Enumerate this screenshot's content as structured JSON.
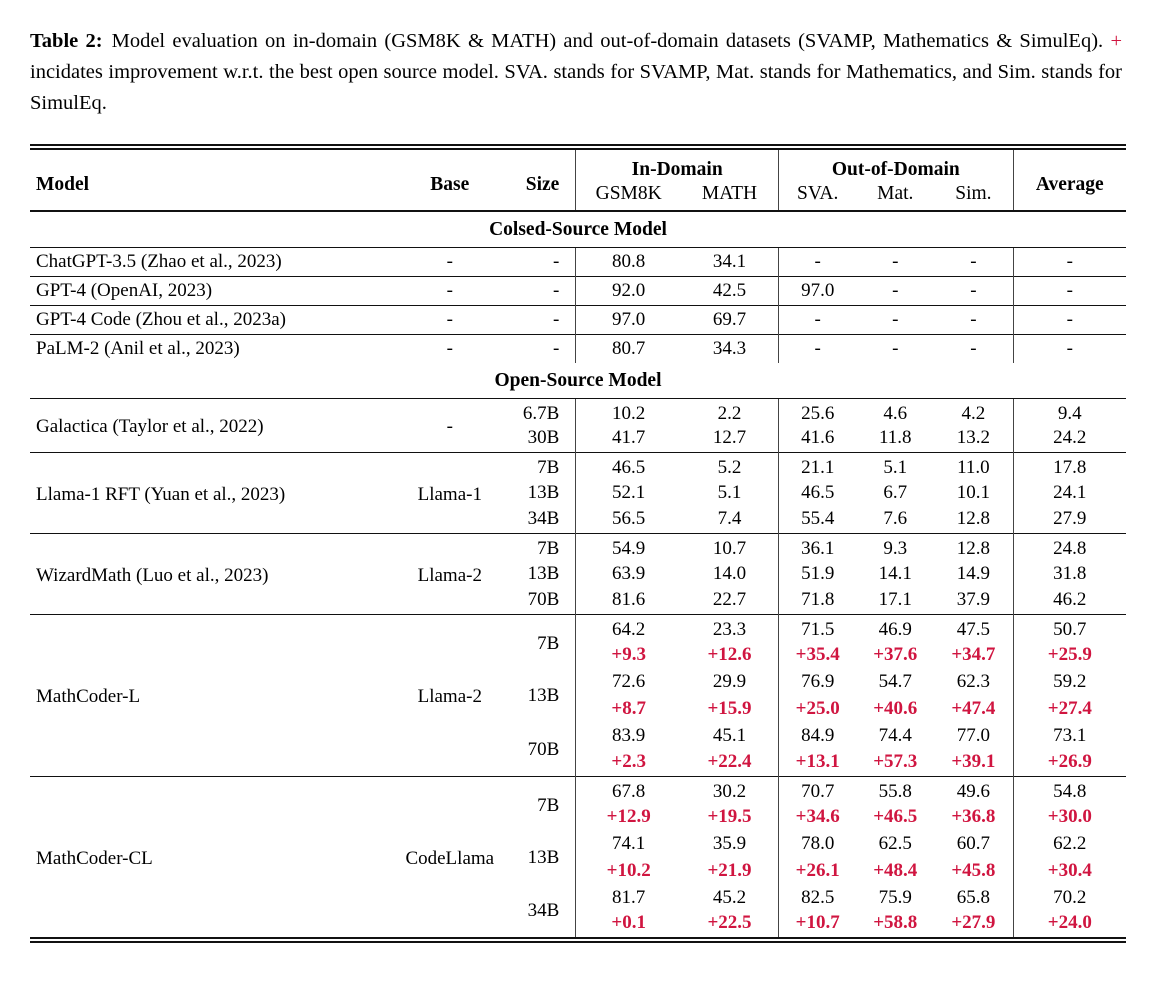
{
  "caption": {
    "label": "Table 2:",
    "before_plus": "Model evaluation on in-domain (GSM8K & MATH) and out-of-domain datasets (SVAMP, Mathematics & SimulEq). ",
    "plus": "+",
    "after_plus": " incidates improvement w.r.t. the best open source model. SVA. stands for SVAMP, Mat. stands for Mathematics, and Sim. stands for SimulEq."
  },
  "colors": {
    "delta_red": "#d01540"
  },
  "table": {
    "headers": {
      "model": "Model",
      "base": "Base",
      "size": "Size",
      "in_domain": "In-Domain",
      "out_of_domain": "Out-of-Domain",
      "average": "Average",
      "gsm8k": "GSM8K",
      "math": "MATH",
      "sva": "SVA.",
      "mat": "Mat.",
      "sim": "Sim."
    },
    "sections": [
      {
        "title": "Colsed-Source Model",
        "groups": [
          {
            "model": "ChatGPT-3.5 (Zhao et al., 2023)",
            "base": "-",
            "rows": [
              {
                "size": "-",
                "values": [
                  "80.8",
                  "34.1",
                  "-",
                  "-",
                  "-",
                  "-"
                ]
              }
            ]
          },
          {
            "model": "GPT-4 (OpenAI, 2023)",
            "base": "-",
            "rows": [
              {
                "size": "-",
                "values": [
                  "92.0",
                  "42.5",
                  "97.0",
                  "-",
                  "-",
                  "-"
                ]
              }
            ]
          },
          {
            "model": "GPT-4 Code (Zhou et al., 2023a)",
            "base": "-",
            "rows": [
              {
                "size": "-",
                "values": [
                  "97.0",
                  "69.7",
                  "-",
                  "-",
                  "-",
                  "-"
                ]
              }
            ]
          },
          {
            "model": "PaLM-2 (Anil et al., 2023)",
            "base": "-",
            "rows": [
              {
                "size": "-",
                "values": [
                  "80.7",
                  "34.3",
                  "-",
                  "-",
                  "-",
                  "-"
                ]
              }
            ]
          }
        ]
      },
      {
        "title": "Open-Source Model",
        "groups": [
          {
            "model": "Galactica (Taylor et al., 2022)",
            "base": "-",
            "rows": [
              {
                "size": "6.7B",
                "values": [
                  "10.2",
                  "2.2",
                  "25.6",
                  "4.6",
                  "4.2",
                  "9.4"
                ]
              },
              {
                "size": "30B",
                "values": [
                  "41.7",
                  "12.7",
                  "41.6",
                  "11.8",
                  "13.2",
                  "24.2"
                ]
              }
            ]
          },
          {
            "model": "Llama-1 RFT (Yuan et al., 2023)",
            "base": "Llama-1",
            "rows": [
              {
                "size": "7B",
                "values": [
                  "46.5",
                  "5.2",
                  "21.1",
                  "5.1",
                  "11.0",
                  "17.8"
                ]
              },
              {
                "size": "13B",
                "values": [
                  "52.1",
                  "5.1",
                  "46.5",
                  "6.7",
                  "10.1",
                  "24.1"
                ]
              },
              {
                "size": "34B",
                "values": [
                  "56.5",
                  "7.4",
                  "55.4",
                  "7.6",
                  "12.8",
                  "27.9"
                ]
              }
            ]
          },
          {
            "model": "WizardMath (Luo et al., 2023)",
            "base": "Llama-2",
            "rows": [
              {
                "size": "7B",
                "values": [
                  "54.9",
                  "10.7",
                  "36.1",
                  "9.3",
                  "12.8",
                  "24.8"
                ]
              },
              {
                "size": "13B",
                "values": [
                  "63.9",
                  "14.0",
                  "51.9",
                  "14.1",
                  "14.9",
                  "31.8"
                ]
              },
              {
                "size": "70B",
                "values": [
                  "81.6",
                  "22.7",
                  "71.8",
                  "17.1",
                  "37.9",
                  "46.2"
                ]
              }
            ]
          },
          {
            "model": "MathCoder-L",
            "base": "Llama-2",
            "rows": [
              {
                "size": "7B",
                "values": [
                  "64.2",
                  "23.3",
                  "71.5",
                  "46.9",
                  "47.5",
                  "50.7"
                ],
                "deltas": [
                  "+9.3",
                  "+12.6",
                  "+35.4",
                  "+37.6",
                  "+34.7",
                  "+25.9"
                ]
              },
              {
                "size": "13B",
                "values": [
                  "72.6",
                  "29.9",
                  "76.9",
                  "54.7",
                  "62.3",
                  "59.2"
                ],
                "deltas": [
                  "+8.7",
                  "+15.9",
                  "+25.0",
                  "+40.6",
                  "+47.4",
                  "+27.4"
                ]
              },
              {
                "size": "70B",
                "values": [
                  "83.9",
                  "45.1",
                  "84.9",
                  "74.4",
                  "77.0",
                  "73.1"
                ],
                "deltas": [
                  "+2.3",
                  "+22.4",
                  "+13.1",
                  "+57.3",
                  "+39.1",
                  "+26.9"
                ]
              }
            ]
          },
          {
            "model": "MathCoder-CL",
            "base": "CodeLlama",
            "rows": [
              {
                "size": "7B",
                "values": [
                  "67.8",
                  "30.2",
                  "70.7",
                  "55.8",
                  "49.6",
                  "54.8"
                ],
                "deltas": [
                  "+12.9",
                  "+19.5",
                  "+34.6",
                  "+46.5",
                  "+36.8",
                  "+30.0"
                ]
              },
              {
                "size": "13B",
                "values": [
                  "74.1",
                  "35.9",
                  "78.0",
                  "62.5",
                  "60.7",
                  "62.2"
                ],
                "deltas": [
                  "+10.2",
                  "+21.9",
                  "+26.1",
                  "+48.4",
                  "+45.8",
                  "+30.4"
                ]
              },
              {
                "size": "34B",
                "values": [
                  "81.7",
                  "45.2",
                  "82.5",
                  "75.9",
                  "65.8",
                  "70.2"
                ],
                "deltas": [
                  "+0.1",
                  "+22.5",
                  "+10.7",
                  "+58.8",
                  "+27.9",
                  "+24.0"
                ]
              }
            ]
          }
        ]
      }
    ]
  }
}
